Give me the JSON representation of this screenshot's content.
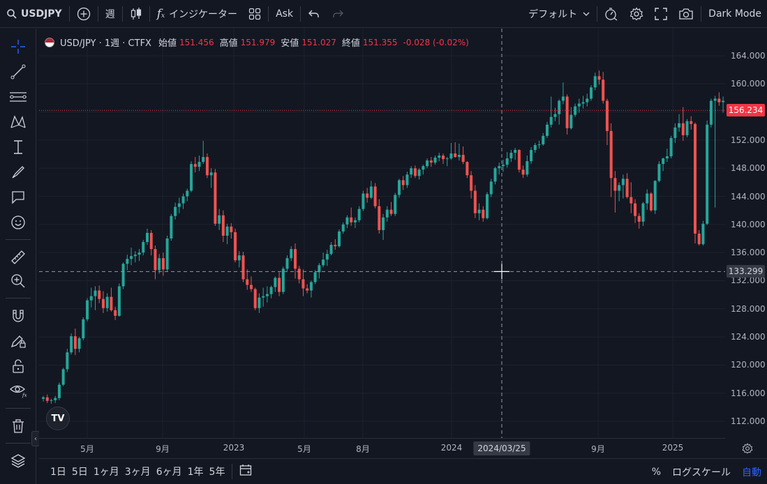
{
  "topbar": {
    "symbol": "USDJPY",
    "interval": "週",
    "indicators": "インジケーター",
    "ask": "Ask",
    "layout": "デフォルト",
    "theme": "Dark Mode"
  },
  "legend": {
    "symbol": "USD/JPY · 1週 · CTFX",
    "open_label": "始値",
    "open": "151.456",
    "high_label": "高値",
    "high": "151.979",
    "low_label": "安値",
    "low": "151.027",
    "close_label": "終値",
    "close": "151.355",
    "change": "-0.028 (-0.02%)"
  },
  "price_scale": {
    "labels": [
      "164.000",
      "160.000",
      "156.000",
      "152.000",
      "148.000",
      "144.000",
      "140.000",
      "136.000",
      "132.000",
      "128.000",
      "124.000",
      "120.000",
      "116.000",
      "112.000"
    ],
    "last_price": "156.234",
    "crosshair_price": "133.299"
  },
  "time_scale": {
    "labels": [
      "5月",
      "9月",
      "2023",
      "5月",
      "8月",
      "2024",
      "9月",
      "2025"
    ],
    "crosshair_date": "2024/03/25"
  },
  "bottombar": {
    "ranges": [
      "1日",
      "5日",
      "1ヶ月",
      "3ヶ月",
      "6ヶ月",
      "1年",
      "5年"
    ],
    "percent": "%",
    "log": "ログスケール",
    "auto": "自動"
  },
  "colors": {
    "up": "#26a69a",
    "down": "#ef5350",
    "background": "#131722",
    "accent": "#2962ff"
  },
  "chart_data": {
    "type": "candlestick",
    "symbol": "USD/JPY",
    "interval": "1W",
    "ylim": [
      110,
      166
    ],
    "last_price": 156.234,
    "crosshair": {
      "price": 133.299,
      "date": "2024/03/25"
    },
    "candles": [
      [
        115.2,
        115.6,
        114.8,
        115.4
      ],
      [
        115.4,
        115.8,
        114.6,
        114.9
      ],
      [
        114.9,
        115.2,
        114.5,
        115.0
      ],
      [
        115.0,
        115.6,
        114.6,
        115.3
      ],
      [
        115.3,
        117.5,
        115.0,
        117.2
      ],
      [
        117.2,
        119.6,
        117.0,
        119.4
      ],
      [
        119.4,
        122.3,
        119.0,
        121.8
      ],
      [
        121.8,
        124.5,
        121.5,
        124.1
      ],
      [
        124.1,
        125.2,
        121.4,
        122.3
      ],
      [
        122.3,
        124.0,
        121.8,
        123.8
      ],
      [
        123.8,
        126.8,
        123.5,
        126.5
      ],
      [
        126.5,
        129.5,
        126.2,
        129.2
      ],
      [
        129.2,
        131.0,
        128.2,
        129.8
      ],
      [
        129.8,
        131.2,
        127.8,
        130.6
      ],
      [
        130.6,
        131.3,
        128.8,
        129.4
      ],
      [
        129.4,
        130.5,
        127.4,
        128.1
      ],
      [
        128.1,
        130.2,
        127.6,
        129.7
      ],
      [
        129.7,
        131.0,
        127.6,
        127.8
      ],
      [
        127.8,
        128.3,
        126.4,
        127.0
      ],
      [
        127.0,
        131.6,
        126.9,
        131.2
      ],
      [
        131.2,
        134.6,
        130.8,
        134.4
      ],
      [
        134.4,
        135.7,
        133.5,
        135.1
      ],
      [
        135.1,
        136.7,
        134.2,
        135.5
      ],
      [
        135.5,
        136.2,
        134.6,
        135.7
      ],
      [
        135.7,
        136.5,
        134.8,
        136.0
      ],
      [
        136.0,
        137.8,
        135.6,
        137.5
      ],
      [
        137.5,
        139.4,
        137.1,
        138.8
      ],
      [
        138.8,
        139.2,
        135.6,
        136.5
      ],
      [
        136.5,
        137.0,
        132.2,
        133.5
      ],
      [
        133.5,
        135.8,
        133.0,
        135.2
      ],
      [
        135.2,
        136.0,
        132.7,
        133.6
      ],
      [
        133.6,
        138.4,
        133.3,
        138.0
      ],
      [
        138.0,
        141.5,
        137.7,
        141.2
      ],
      [
        141.2,
        143.1,
        140.7,
        142.5
      ],
      [
        142.5,
        143.8,
        141.6,
        143.0
      ],
      [
        143.0,
        144.4,
        142.2,
        144.0
      ],
      [
        144.0,
        145.1,
        143.3,
        144.8
      ],
      [
        144.8,
        149.0,
        144.6,
        148.6
      ],
      [
        148.6,
        149.6,
        147.4,
        148.2
      ],
      [
        148.2,
        149.8,
        147.6,
        148.9
      ],
      [
        148.9,
        151.9,
        148.6,
        149.6
      ],
      [
        149.6,
        150.1,
        146.6,
        147.0
      ],
      [
        147.0,
        148.0,
        145.2,
        147.4
      ],
      [
        147.4,
        147.9,
        139.8,
        140.1
      ],
      [
        140.1,
        142.2,
        139.2,
        141.3
      ],
      [
        141.3,
        142.0,
        137.5,
        138.4
      ],
      [
        138.4,
        140.1,
        137.2,
        139.7
      ],
      [
        139.7,
        140.2,
        138.0,
        138.9
      ],
      [
        138.9,
        139.4,
        134.6,
        134.9
      ],
      [
        134.9,
        136.2,
        133.9,
        135.6
      ],
      [
        135.6,
        136.1,
        131.8,
        132.2
      ],
      [
        132.2,
        133.6,
        130.7,
        131.4
      ],
      [
        131.4,
        132.6,
        130.4,
        130.8
      ],
      [
        130.8,
        131.0,
        127.8,
        128.1
      ],
      [
        128.1,
        130.2,
        127.4,
        129.6
      ],
      [
        129.6,
        131.0,
        128.3,
        129.8
      ],
      [
        129.8,
        131.2,
        128.9,
        130.1
      ],
      [
        130.1,
        131.3,
        129.5,
        131.1
      ],
      [
        131.1,
        132.6,
        130.4,
        132.4
      ],
      [
        132.4,
        133.2,
        129.8,
        130.4
      ],
      [
        130.4,
        134.0,
        130.1,
        133.7
      ],
      [
        133.7,
        135.6,
        133.4,
        135.2
      ],
      [
        135.2,
        136.9,
        134.8,
        136.5
      ],
      [
        136.5,
        137.3,
        132.3,
        133.7
      ],
      [
        133.7,
        134.1,
        131.6,
        132.2
      ],
      [
        132.2,
        133.6,
        129.8,
        130.9
      ],
      [
        130.9,
        131.5,
        130.2,
        130.6
      ],
      [
        130.6,
        132.0,
        129.6,
        131.8
      ],
      [
        131.8,
        133.5,
        131.5,
        133.2
      ],
      [
        133.2,
        134.5,
        132.3,
        134.2
      ],
      [
        134.2,
        136.0,
        133.9,
        135.0
      ],
      [
        135.0,
        136.4,
        134.1,
        135.8
      ],
      [
        135.8,
        137.5,
        135.6,
        137.1
      ],
      [
        137.1,
        137.9,
        136.4,
        136.9
      ],
      [
        136.9,
        139.3,
        136.7,
        139.0
      ],
      [
        139.0,
        140.3,
        138.7,
        140.0
      ],
      [
        140.0,
        141.3,
        139.5,
        141.0
      ],
      [
        141.0,
        142.4,
        139.8,
        140.3
      ],
      [
        140.3,
        141.0,
        139.5,
        140.6
      ],
      [
        140.6,
        142.6,
        140.3,
        142.2
      ],
      [
        142.2,
        144.8,
        141.9,
        144.4
      ],
      [
        144.4,
        145.2,
        143.1,
        143.8
      ],
      [
        143.8,
        146.2,
        143.6,
        145.4
      ],
      [
        145.4,
        145.9,
        142.3,
        142.6
      ],
      [
        142.6,
        143.6,
        138.7,
        139.2
      ],
      [
        139.2,
        141.5,
        137.8,
        141.0
      ],
      [
        141.0,
        142.6,
        140.4,
        142.1
      ],
      [
        142.1,
        143.2,
        141.2,
        141.5
      ],
      [
        141.5,
        144.5,
        141.2,
        144.2
      ],
      [
        144.2,
        146.5,
        143.8,
        146.3
      ],
      [
        146.3,
        146.9,
        144.9,
        145.6
      ],
      [
        145.6,
        147.5,
        145.2,
        147.1
      ],
      [
        147.1,
        148.3,
        146.6,
        148.0
      ],
      [
        148.0,
        148.4,
        146.6,
        146.9
      ],
      [
        146.9,
        148.0,
        146.4,
        147.8
      ],
      [
        147.8,
        148.5,
        147.1,
        148.3
      ],
      [
        148.3,
        149.4,
        148.0,
        149.1
      ],
      [
        149.1,
        149.6,
        148.2,
        148.8
      ],
      [
        148.8,
        149.8,
        148.5,
        149.5
      ],
      [
        149.5,
        150.2,
        149.0,
        149.8
      ],
      [
        149.8,
        150.1,
        148.6,
        149.3
      ],
      [
        149.3,
        149.6,
        148.3,
        149.4
      ],
      [
        149.4,
        151.6,
        149.2,
        150.1
      ],
      [
        150.1,
        151.7,
        149.5,
        149.6
      ],
      [
        149.6,
        151.5,
        149.1,
        149.9
      ],
      [
        149.9,
        151.1,
        148.6,
        148.9
      ],
      [
        148.9,
        149.0,
        146.6,
        147.0
      ],
      [
        147.0,
        147.6,
        143.7,
        144.8
      ],
      [
        144.8,
        145.6,
        140.9,
        141.6
      ],
      [
        141.6,
        143.0,
        140.6,
        142.1
      ],
      [
        142.1,
        142.6,
        140.4,
        140.9
      ],
      [
        140.9,
        144.6,
        140.7,
        144.3
      ],
      [
        144.3,
        146.5,
        143.9,
        146.1
      ],
      [
        146.1,
        148.2,
        145.7,
        148.0
      ],
      [
        148.0,
        148.8,
        147.1,
        148.3
      ],
      [
        148.3,
        149.2,
        147.5,
        148.5
      ],
      [
        148.5,
        150.3,
        148.1,
        149.4
      ],
      [
        149.4,
        150.6,
        148.9,
        150.2
      ],
      [
        150.2,
        150.9,
        149.2,
        150.6
      ],
      [
        150.6,
        150.7,
        147.4,
        147.8
      ],
      [
        147.8,
        148.4,
        146.6,
        147.1
      ],
      [
        147.1,
        149.8,
        146.8,
        149.0
      ],
      [
        149.0,
        151.0,
        148.6,
        150.6
      ],
      [
        150.6,
        151.6,
        150.2,
        151.3
      ],
      [
        151.3,
        151.9,
        150.8,
        151.4
      ],
      [
        151.4,
        153.0,
        151.2,
        152.6
      ],
      [
        152.6,
        154.6,
        152.3,
        154.2
      ],
      [
        154.2,
        158.2,
        153.8,
        155.3
      ],
      [
        155.3,
        156.6,
        154.7,
        155.7
      ],
      [
        155.7,
        157.8,
        154.2,
        157.6
      ],
      [
        157.6,
        160.2,
        157.1,
        158.2
      ],
      [
        158.2,
        158.5,
        152.8,
        153.7
      ],
      [
        153.7,
        156.7,
        153.5,
        155.6
      ],
      [
        155.6,
        157.2,
        155.3,
        156.8
      ],
      [
        156.8,
        157.9,
        155.9,
        157.2
      ],
      [
        157.2,
        158.3,
        156.5,
        157.4
      ],
      [
        157.4,
        158.6,
        156.8,
        157.9
      ],
      [
        157.9,
        159.8,
        157.6,
        159.5
      ],
      [
        159.5,
        161.6,
        159.1,
        161.1
      ],
      [
        161.1,
        161.9,
        159.9,
        160.6
      ],
      [
        160.6,
        161.7,
        157.2,
        157.6
      ],
      [
        157.6,
        157.9,
        151.3,
        153.3
      ],
      [
        153.3,
        154.4,
        143.9,
        146.6
      ],
      [
        146.6,
        147.6,
        141.7,
        144.8
      ],
      [
        144.8,
        146.0,
        143.3,
        145.6
      ],
      [
        145.6,
        147.1,
        143.7,
        146.5
      ],
      [
        146.5,
        147.3,
        143.7,
        143.9
      ],
      [
        143.9,
        146.0,
        141.6,
        143.0
      ],
      [
        143.0,
        143.6,
        140.2,
        141.2
      ],
      [
        141.2,
        141.6,
        139.4,
        140.4
      ],
      [
        140.4,
        143.2,
        139.8,
        143.0
      ],
      [
        143.0,
        145.0,
        142.1,
        144.4
      ],
      [
        144.4,
        144.6,
        141.8,
        142.0
      ],
      [
        142.0,
        146.3,
        141.5,
        146.2
      ],
      [
        146.2,
        149.0,
        146.0,
        148.6
      ],
      [
        148.6,
        149.5,
        147.6,
        149.4
      ],
      [
        149.4,
        150.8,
        148.9,
        149.7
      ],
      [
        149.7,
        152.6,
        149.4,
        152.3
      ],
      [
        152.3,
        154.4,
        151.6,
        153.8
      ],
      [
        153.8,
        155.7,
        153.2,
        154.4
      ],
      [
        154.4,
        156.7,
        151.9,
        152.7
      ],
      [
        152.7,
        155.0,
        152.4,
        154.7
      ],
      [
        154.7,
        155.4,
        153.5,
        154.3
      ],
      [
        154.3,
        154.5,
        137.3,
        138.7
      ],
      [
        138.7,
        139.2,
        137.0,
        137.2
      ],
      [
        137.2,
        140.5,
        137.0,
        140.1
      ],
      [
        140.1,
        154.8,
        139.9,
        154.2
      ],
      [
        154.2,
        157.9,
        153.8,
        157.6
      ],
      [
        157.6,
        158.3,
        142.4,
        157.9
      ],
      [
        157.9,
        158.8,
        156.9,
        157.4
      ],
      [
        157.4,
        158.2,
        155.9,
        157.6
      ],
      [
        157.6,
        158.0,
        155.7,
        156.3
      ],
      [
        156.3,
        156.8,
        155.2,
        156.2
      ]
    ]
  }
}
